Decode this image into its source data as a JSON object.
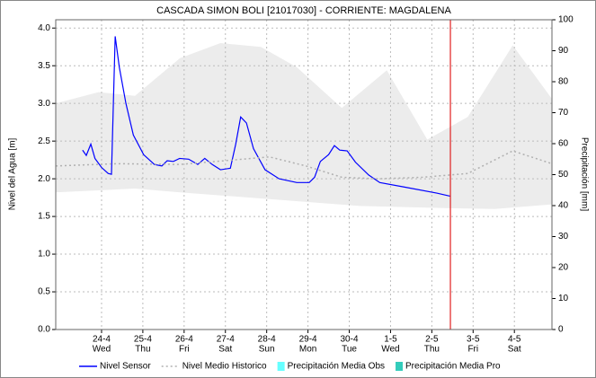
{
  "chart_data": {
    "type": "line",
    "title": "CASCADA SIMON BOLI [21017030] - CORRIENTE: MAGDALENA",
    "y_label": "Nivel del Agua [m]",
    "y2_label": "Precipitación [mm]",
    "xlim": [
      -1.11,
      10.91
    ],
    "xticks": [
      {
        "value": 0,
        "label": "24-4"
      },
      {
        "value": 1,
        "label": "25-4"
      },
      {
        "value": 2,
        "label": "26-4"
      },
      {
        "value": 3,
        "label": "27-4"
      },
      {
        "value": 4,
        "label": "28-4"
      },
      {
        "value": 5,
        "label": "29-4"
      },
      {
        "value": 6,
        "label": "30-4"
      },
      {
        "value": 7,
        "label": "1-5"
      },
      {
        "value": 8,
        "label": "2-5"
      },
      {
        "value": 9,
        "label": "3-5"
      },
      {
        "value": 10,
        "label": "4-5"
      }
    ],
    "xtick_weekdays": [
      "Wed",
      "Thu",
      "Fri",
      "Sat",
      "Sun",
      "Mon",
      "Tue",
      "Wed",
      "Thu",
      "Fri",
      "Sat"
    ],
    "ylim": [
      0,
      4.11
    ],
    "yticks": [
      {
        "value": 0,
        "label": "0.0"
      },
      0.5,
      {
        "value": 1,
        "label": "1.0"
      },
      1.5,
      {
        "value": 2,
        "label": "2.0"
      },
      2.5,
      {
        "value": 3,
        "label": "3.0"
      },
      3.5,
      {
        "value": 4,
        "label": "4.0"
      }
    ],
    "y2lim": [
      0,
      100
    ],
    "y2ticks": [
      0,
      10,
      20,
      30,
      40,
      50,
      60,
      70,
      80,
      90,
      100
    ],
    "grid": true,
    "now_line": {
      "x": 8.45,
      "color": "#e02020"
    },
    "band": {
      "color": "#ececec",
      "upper": {
        "x": [
          -1.11,
          -0.07,
          0.81,
          1.9,
          2.88,
          3.86,
          4.73,
          5.82,
          6.91,
          7.89,
          8.87,
          9.96,
          10.91
        ],
        "values": [
          3.0,
          3.15,
          3.1,
          3.6,
          3.8,
          3.75,
          3.48,
          2.94,
          3.44,
          2.52,
          2.82,
          3.77,
          3.06
        ]
      },
      "lower": {
        "x": [
          -1.11,
          0.81,
          1.9,
          4.07,
          6.25,
          8.43,
          9.52,
          10.91
        ],
        "values": [
          1.82,
          1.87,
          1.82,
          1.73,
          1.64,
          1.61,
          1.6,
          1.66
        ]
      }
    },
    "series": [
      {
        "name": "Nivel Sensor",
        "color": "#0000ff",
        "style": "solid",
        "x": [
          -0.46,
          -0.37,
          -0.26,
          -0.16,
          0,
          0.16,
          0.24,
          0.33,
          0.43,
          0.59,
          0.77,
          1.02,
          1.28,
          1.46,
          1.59,
          1.74,
          1.89,
          2.11,
          2.33,
          2.5,
          2.68,
          2.88,
          3.12,
          3.25,
          3.37,
          3.51,
          3.68,
          3.96,
          4.3,
          4.73,
          5.03,
          5.16,
          5.3,
          5.5,
          5.64,
          5.77,
          5.95,
          6.15,
          6.47,
          6.74,
          7.34,
          8.12,
          8.44
        ],
        "values": [
          2.38,
          2.31,
          2.46,
          2.27,
          2.15,
          2.07,
          2.06,
          3.89,
          3.48,
          3.0,
          2.58,
          2.32,
          2.19,
          2.17,
          2.24,
          2.23,
          2.27,
          2.26,
          2.19,
          2.27,
          2.19,
          2.12,
          2.14,
          2.46,
          2.82,
          2.74,
          2.4,
          2.12,
          2.0,
          1.95,
          1.95,
          2.02,
          2.23,
          2.32,
          2.44,
          2.38,
          2.37,
          2.22,
          2.05,
          1.95,
          1.89,
          1.81,
          1.77
        ]
      },
      {
        "name": "Nivel Medio Historico",
        "color": "#b0b0b0",
        "style": "dotted",
        "x": [
          -1.11,
          0.37,
          1.89,
          3.2,
          4.07,
          4.95,
          5.82,
          6.69,
          7.78,
          8.87,
          9.96,
          10.91
        ],
        "values": [
          2.17,
          2.2,
          2.19,
          2.25,
          2.29,
          2.17,
          2.02,
          2.0,
          2.02,
          2.07,
          2.37,
          2.2
        ]
      },
      {
        "name": "Precipitación Media Obs",
        "color": "#66ffff",
        "style": "box",
        "axis": "y2",
        "x": [],
        "values": []
      },
      {
        "name": "Precipitación Media Pro",
        "color": "#33ccbb",
        "style": "box",
        "axis": "y2",
        "x": [],
        "values": []
      }
    ]
  }
}
